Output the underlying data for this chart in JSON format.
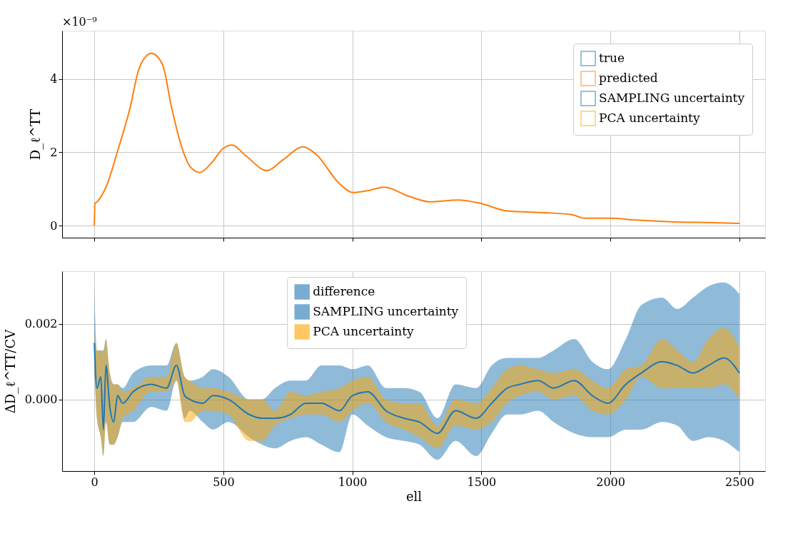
{
  "chart_data": [
    {
      "type": "line",
      "ylabel": "D_ℓ^TT",
      "xlim": [
        -125,
        2600
      ],
      "xticks": [
        0,
        500,
        1000,
        1500,
        2000,
        2500
      ],
      "ylim": [
        -0.33,
        5.32
      ],
      "yticks": [
        0,
        2,
        4
      ],
      "tick_labels": "y",
      "grid": true,
      "legend": "top right",
      "annotations": [
        "×10⁻⁹"
      ],
      "x": [
        0,
        2,
        11,
        48,
        93,
        138,
        174,
        221,
        264,
        300,
        336,
        372,
        408,
        453,
        498,
        534,
        588,
        669,
        732,
        809,
        859,
        949,
        1003,
        1057,
        1124,
        1219,
        1300,
        1410,
        1500,
        1600,
        1750,
        1850,
        1900,
        2000,
        2100,
        2250,
        2400,
        2500
      ],
      "series": [
        {
          "name": "true",
          "color": "#1f77b4",
          "values": [
            null,
            null,
            null,
            null,
            null,
            null,
            null,
            null,
            null,
            null,
            null,
            null,
            null,
            null,
            null,
            null,
            null,
            null,
            null,
            null,
            null,
            null,
            null,
            null,
            null,
            null,
            null,
            null,
            null,
            null,
            null,
            null,
            null,
            null,
            null,
            null,
            null,
            null
          ]
        },
        {
          "name": "predicted",
          "color": "#ff7f0e",
          "values": [
            0,
            0.6,
            0.65,
            1.1,
            2.1,
            3.2,
            4.3,
            4.7,
            4.4,
            3.2,
            2.2,
            1.6,
            1.45,
            1.7,
            2.1,
            2.2,
            1.9,
            1.5,
            1.8,
            2.15,
            1.95,
            1.15,
            0.9,
            0.95,
            1.05,
            0.8,
            0.65,
            0.7,
            0.6,
            0.4,
            0.35,
            0.3,
            0.2,
            0.2,
            0.15,
            0.1,
            0.08,
            0.06
          ]
        },
        {
          "name": "SAMPLING uncertainty",
          "color": "#1f77b4",
          "values": [
            null,
            null,
            null,
            null,
            null,
            null,
            null,
            null,
            null,
            null,
            null,
            null,
            null,
            null,
            null,
            null,
            null,
            null,
            null,
            null,
            null,
            null,
            null,
            null,
            null,
            null,
            null,
            null,
            null,
            null,
            null,
            null,
            null,
            null,
            null,
            null,
            null,
            null
          ]
        },
        {
          "name": "PCA uncertainty",
          "color": "#ffa500",
          "values": [
            null,
            null,
            null,
            null,
            null,
            null,
            null,
            null,
            null,
            null,
            null,
            null,
            null,
            null,
            null,
            null,
            null,
            null,
            null,
            null,
            null,
            null,
            null,
            null,
            null,
            null,
            null,
            null,
            null,
            null,
            null,
            null,
            null,
            null,
            null,
            null,
            null,
            null
          ]
        }
      ]
    },
    {
      "type": "line",
      "xlabel": "ell",
      "ylabel": "ΔD_ℓ^TT/CV",
      "xlim": [
        -125,
        2600
      ],
      "xticks": [
        0,
        500,
        1000,
        1500,
        2000,
        2500
      ],
      "ylim": [
        -0.0019,
        0.0034
      ],
      "yticks": [
        {
          "value": 0,
          "label": "0.000"
        },
        {
          "value": 0.002,
          "label": "0.002"
        }
      ],
      "grid": true,
      "legend": "top",
      "x": [
        0,
        10,
        25,
        35,
        45,
        60,
        75,
        90,
        110,
        150,
        220,
        280,
        318,
        350,
        370,
        420,
        460,
        520,
        600,
        650,
        700,
        760,
        820,
        880,
        950,
        1000,
        1060,
        1130,
        1200,
        1260,
        1330,
        1400,
        1480,
        1540,
        1600,
        1650,
        1720,
        1780,
        1860,
        1930,
        1990,
        2060,
        2120,
        2200,
        2260,
        2320,
        2380,
        2440,
        2500
      ],
      "series": [
        {
          "name": "difference",
          "color": "#1f77b4",
          "values": [
            0.0015,
            0.0003,
            0.0006,
            -0.0008,
            0.0009,
            -0.0002,
            -0.0006,
            0.0001,
            -0.0001,
            0.0002,
            0.0004,
            0.0003,
            0.0009,
            0.0001,
            0,
            -0.0001,
            0.0001,
            0,
            -0.0004,
            -0.0005,
            -0.0005,
            -0.0004,
            -0.0001,
            -0.0001,
            -0.0003,
            0.0001,
            0.0002,
            -0.0003,
            -0.0005,
            -0.0006,
            -0.0009,
            -0.0003,
            -0.0005,
            -0.0001,
            0.0003,
            0.0004,
            0.0005,
            0.0003,
            0.0005,
            0.0001,
            -0.0001,
            0.0004,
            0.0007,
            0.001,
            0.0009,
            0.0007,
            0.0009,
            0.0011,
            0.0007
          ]
        },
        {
          "name": "SAMPLING uncertainty",
          "color": "#1f77b4",
          "values": [
            null,
            null,
            null,
            null,
            null,
            null,
            null,
            null,
            null,
            null,
            null,
            null,
            null,
            null,
            null,
            null,
            null,
            null,
            null,
            null,
            null,
            null,
            null,
            null,
            null,
            null,
            null,
            null,
            null,
            null,
            null,
            null,
            null,
            null,
            null,
            null,
            null,
            null,
            null,
            null,
            null,
            null,
            null,
            null,
            null,
            null,
            null,
            null,
            null
          ],
          "lower": [
            0.0008,
            -0.0005,
            -0.001,
            -0.0015,
            -0.0006,
            -0.0012,
            -0.0012,
            -0.001,
            -0.0006,
            -0.0006,
            -0.0002,
            -0.0003,
            0.0005,
            -0.0005,
            -0.0003,
            -0.0006,
            -0.0008,
            -0.0006,
            -0.001,
            -0.0012,
            -0.0013,
            -0.0011,
            -0.001,
            -0.0012,
            -0.0014,
            -0.0004,
            -0.0007,
            -0.001,
            -0.0011,
            -0.0012,
            -0.0016,
            -0.0011,
            -0.0015,
            -0.0009,
            -0.0004,
            -0.0004,
            -0.0003,
            -0.0006,
            -0.0009,
            -0.001,
            -0.001,
            -0.0008,
            -0.0008,
            -0.0006,
            -0.0007,
            -0.0011,
            -0.001,
            -0.0011,
            -0.0014
          ],
          "upper": [
            0.0029,
            0.0013,
            0.0013,
            0.0013,
            0.0016,
            0.0007,
            0.0004,
            0.0004,
            0.0003,
            0.0007,
            0.0009,
            0.0009,
            0.0015,
            0.0006,
            0.0005,
            0.0006,
            0.0008,
            0.0006,
            0,
            0,
            0.0003,
            0.0005,
            0.0005,
            0.0009,
            0.0009,
            0.0008,
            0.0009,
            0.0003,
            0.0003,
            0.0002,
            -0.0005,
            0.0004,
            0.0003,
            0.0009,
            0.0011,
            0.0011,
            0.0011,
            0.0013,
            0.0016,
            0.001,
            0.0008,
            0.0016,
            0.0025,
            0.0027,
            0.0024,
            0.0027,
            0.003,
            0.0031,
            0.0028
          ]
        },
        {
          "name": "PCA uncertainty",
          "color": "#ffa500",
          "values": [
            null,
            null,
            null,
            null,
            null,
            null,
            null,
            null,
            null,
            null,
            null,
            null,
            null,
            null,
            null,
            null,
            null,
            null,
            null,
            null,
            null,
            null,
            null,
            null,
            null,
            null,
            null,
            null,
            null,
            null,
            null,
            null,
            null,
            null,
            null,
            null,
            null,
            null,
            null,
            null,
            null,
            null,
            null,
            null,
            null,
            null,
            null,
            null,
            null
          ],
          "lower": [
            0.001,
            -0.0005,
            -0.001,
            -0.0015,
            -0.0006,
            -0.0012,
            -0.0012,
            -0.001,
            -0.0005,
            -0.0003,
            0.0002,
            0.0002,
            0.0005,
            -0.0006,
            -0.0006,
            -0.0003,
            -0.0003,
            -0.0004,
            -0.0011,
            -0.0011,
            -0.0007,
            -0.0005,
            -0.0004,
            -0.0004,
            -0.0006,
            -0.0003,
            -0.0001,
            -0.0006,
            -0.0008,
            -0.001,
            -0.0013,
            -0.0007,
            -0.0008,
            -0.0006,
            -0.0001,
            0.0001,
            0.0002,
            0,
            0.0001,
            -0.0003,
            -0.0004,
            0,
            0.0006,
            0.0003,
            0.0003,
            0.0003,
            0.0003,
            0.0004,
            0
          ],
          "upper": [
            0.0017,
            0.0013,
            0.0013,
            0.0012,
            0.0016,
            0.0007,
            0.0004,
            0.0004,
            0.0002,
            0.0003,
            0.0006,
            0.0006,
            0.0015,
            0.0006,
            0.0005,
            0.0003,
            0.0003,
            0.0002,
            0,
            0,
            -0.0003,
            0.0002,
            0.0001,
            0.0002,
            0.0003,
            0.0005,
            0.0006,
            0,
            -0.0001,
            -0.0001,
            -0.0007,
            0,
            -0.0001,
            0.0003,
            0.0008,
            0.0009,
            0.0008,
            0.0007,
            0.0008,
            0.0005,
            0.0003,
            0.0008,
            0.0009,
            0.0016,
            0.0013,
            0.001,
            0.0016,
            0.0019,
            0.0014
          ]
        }
      ]
    }
  ]
}
